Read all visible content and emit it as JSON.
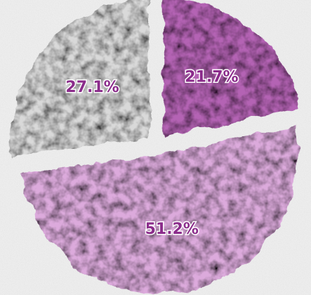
{
  "chart_data": {
    "type": "pie",
    "values": [
      21.7,
      51.2,
      27.1
    ],
    "value_labels": [
      "21.7%",
      "51.2%",
      "27.1%"
    ],
    "colors": [
      "#b464b4",
      "#dcaadc",
      "#d9d9d9"
    ],
    "start_angle": 0,
    "direction": "clockwise"
  }
}
